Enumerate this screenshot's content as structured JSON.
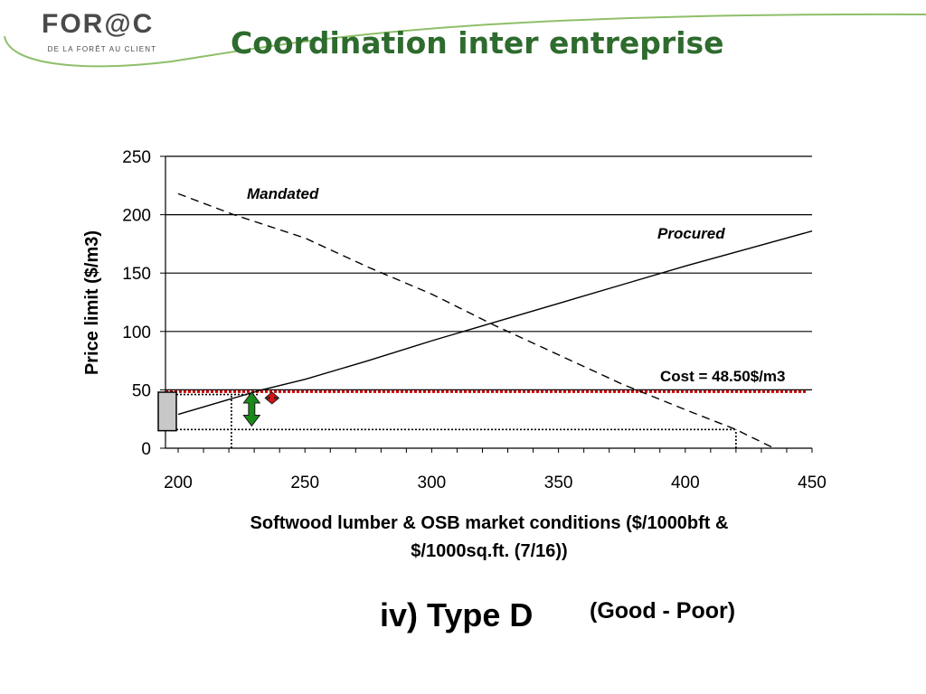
{
  "header": {
    "logo_text": "FOR@C",
    "logo_tagline": "DE LA FORÊT AU CLIENT",
    "title": "Coordination inter entreprise"
  },
  "caption": {
    "main": "iv) Type D",
    "sub": "(Good - Poor)"
  },
  "colors": {
    "title_green": "#2e6b2e",
    "logo_swoosh": "#8fbf6a",
    "cost_line": "#cc0000",
    "green_arrow": "#1a8a1a",
    "red_arrow": "#dd1111"
  },
  "chart_data": {
    "type": "line",
    "xlabel": "Softwood lumber & OSB market conditions ($/1000bft & $/1000sq.ft. (7/16))",
    "xlabel_lines": [
      "Softwood lumber & OSB market conditions ($/1000bft &",
      "$/1000sq.ft. (7/16))"
    ],
    "ylabel": "Price limit ($/m3)",
    "xlim": [
      195,
      450
    ],
    "ylim": [
      0,
      250
    ],
    "x_ticks": [
      200,
      250,
      300,
      350,
      400,
      450
    ],
    "y_ticks": [
      0,
      50,
      100,
      150,
      200,
      250
    ],
    "grid": "horizontal",
    "series": [
      {
        "name": "Mandated",
        "style": "dashed",
        "points": [
          [
            200,
            218
          ],
          [
            222,
            200
          ],
          [
            250,
            180
          ],
          [
            275,
            155
          ],
          [
            300,
            132
          ],
          [
            325,
            105
          ],
          [
            350,
            80
          ],
          [
            375,
            55
          ],
          [
            400,
            33
          ],
          [
            420,
            16
          ],
          [
            435,
            0
          ]
        ]
      },
      {
        "name": "Procured",
        "style": "solid",
        "points": [
          [
            200,
            29
          ],
          [
            233,
            50
          ],
          [
            250,
            59
          ],
          [
            275,
            75
          ],
          [
            300,
            92
          ],
          [
            325,
            108
          ],
          [
            350,
            124
          ],
          [
            375,
            140
          ],
          [
            400,
            156
          ],
          [
            425,
            171
          ],
          [
            450,
            186
          ]
        ]
      }
    ],
    "cost_line": {
      "label": "Cost = 48.50$/m3",
      "value": 48.5
    },
    "reference_lines": [
      {
        "kind": "horizontal-dotted",
        "y": 46,
        "x_from": 195,
        "x_to": 232
      },
      {
        "kind": "horizontal-dotted",
        "y": 16,
        "x_from": 195,
        "x_to": 420
      },
      {
        "kind": "vertical-dotted",
        "x": 221,
        "y_from": 0,
        "y_to": 46
      },
      {
        "kind": "vertical-dotted",
        "x": 420,
        "y_from": 0,
        "y_to": 16
      }
    ],
    "range_box": {
      "y_from": 15,
      "y_to": 48
    },
    "green_arrow": {
      "x": 229,
      "y_from": 19,
      "y_to": 48
    },
    "red_arrow": {
      "x": 237,
      "y_from": 38,
      "y_to": 48
    }
  }
}
